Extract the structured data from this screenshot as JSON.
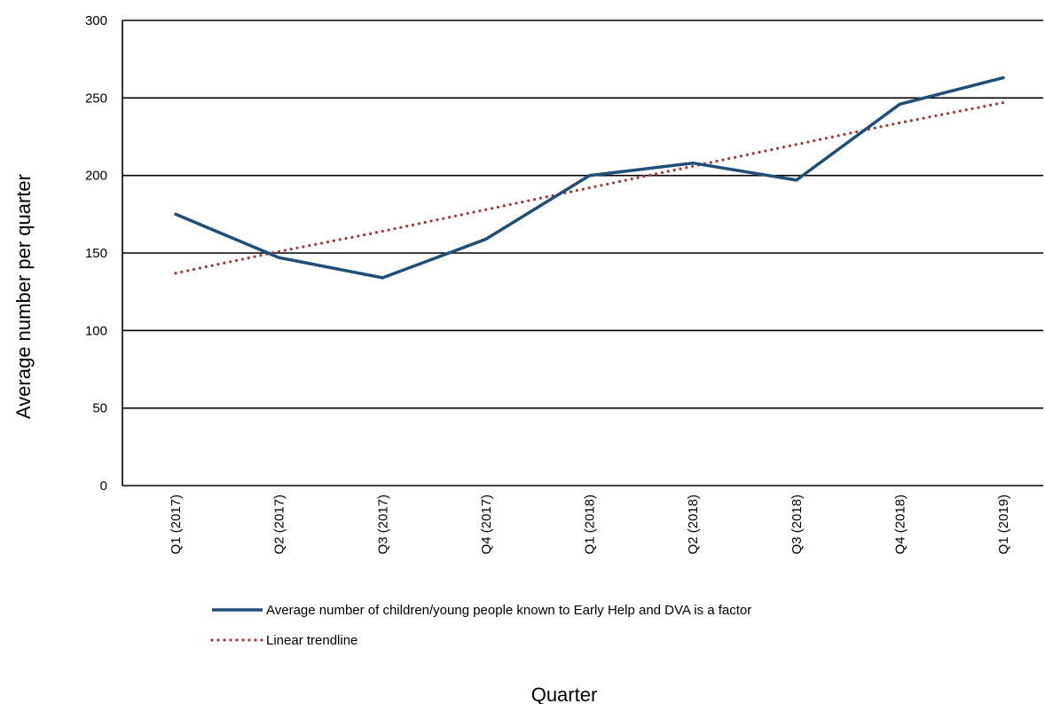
{
  "chart_data": {
    "type": "line",
    "title": "",
    "xlabel": "Quarter",
    "ylabel": "Average number per quarter",
    "categories": [
      "Q1 (2017)",
      "Q2 (2017)",
      "Q3 (2017)",
      "Q4 (2017)",
      "Q1 (2018)",
      "Q2 (2018)",
      "Q3 (2018)",
      "Q4 (2018)",
      "Q1 (2019)"
    ],
    "ylim": [
      0,
      300
    ],
    "yticks": [
      0,
      50,
      100,
      150,
      200,
      250,
      300
    ],
    "grid": true,
    "legend_position": "bottom",
    "series": [
      {
        "name": "Average number of children/young people known to Early Help and DVA is a factor",
        "style": "solid",
        "color": "#1f4e79",
        "values": [
          175,
          147,
          134,
          159,
          200,
          208,
          197,
          246,
          263
        ]
      },
      {
        "name": "Linear trendline",
        "style": "dotted",
        "color": "#9e3a3a",
        "values": [
          137,
          151,
          164,
          178,
          192,
          206,
          220,
          234,
          247
        ]
      }
    ]
  }
}
